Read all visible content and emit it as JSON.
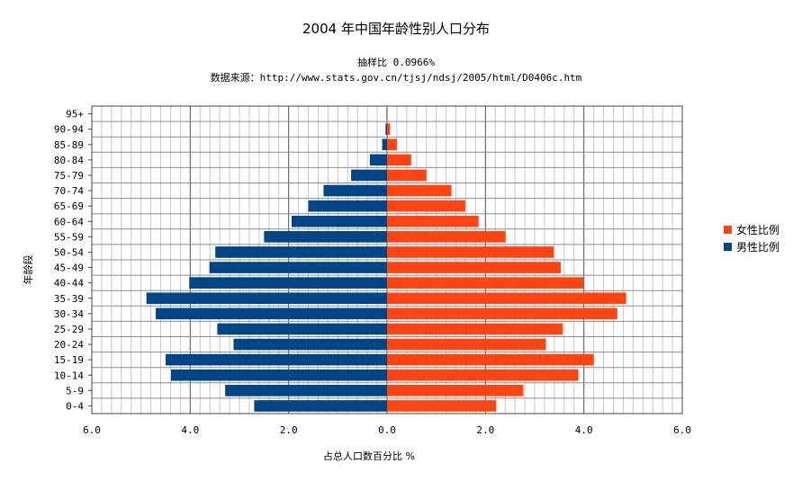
{
  "chart_data": {
    "type": "bar",
    "orientation": "horizontal",
    "layout": "population-pyramid",
    "title": "2004 年中国年龄性别人口分布",
    "subtitle": "抽样比  0.0966%",
    "source": "数据来源：http://www.stats.gov.cn/tjsj/ndsj/2005/html/D0406c.htm",
    "xlabel": "占总人口数百分比  %",
    "ylabel": "年龄段",
    "xlim": [
      -6,
      6
    ],
    "xticks": [
      "6.0",
      "4.0",
      "2.0",
      "0.0",
      "2.0",
      "4.0",
      "6.0"
    ],
    "grid": true,
    "legend_position": "right",
    "categories": [
      "0-4",
      "5-9",
      "10-14",
      "15-19",
      "20-24",
      "25-29",
      "30-34",
      "35-39",
      "40-44",
      "45-49",
      "50-54",
      "55-59",
      "60-64",
      "65-69",
      "70-74",
      "75-79",
      "80-84",
      "85-89",
      "90-94",
      "95+"
    ],
    "series": [
      {
        "name": "女性比例",
        "color": "#ff4411",
        "side": "right",
        "values": [
          2.22,
          2.77,
          3.89,
          4.2,
          3.23,
          3.57,
          4.68,
          4.86,
          3.99,
          3.53,
          3.39,
          2.41,
          1.86,
          1.59,
          1.31,
          0.8,
          0.49,
          0.2,
          0.06,
          0.01
        ]
      },
      {
        "name": "男性比例",
        "color": "#004586",
        "side": "left",
        "values": [
          2.7,
          3.29,
          4.39,
          4.5,
          3.12,
          3.45,
          4.7,
          4.89,
          4.02,
          3.61,
          3.49,
          2.5,
          1.94,
          1.6,
          1.29,
          0.73,
          0.35,
          0.1,
          0.03,
          0.01
        ]
      }
    ]
  }
}
